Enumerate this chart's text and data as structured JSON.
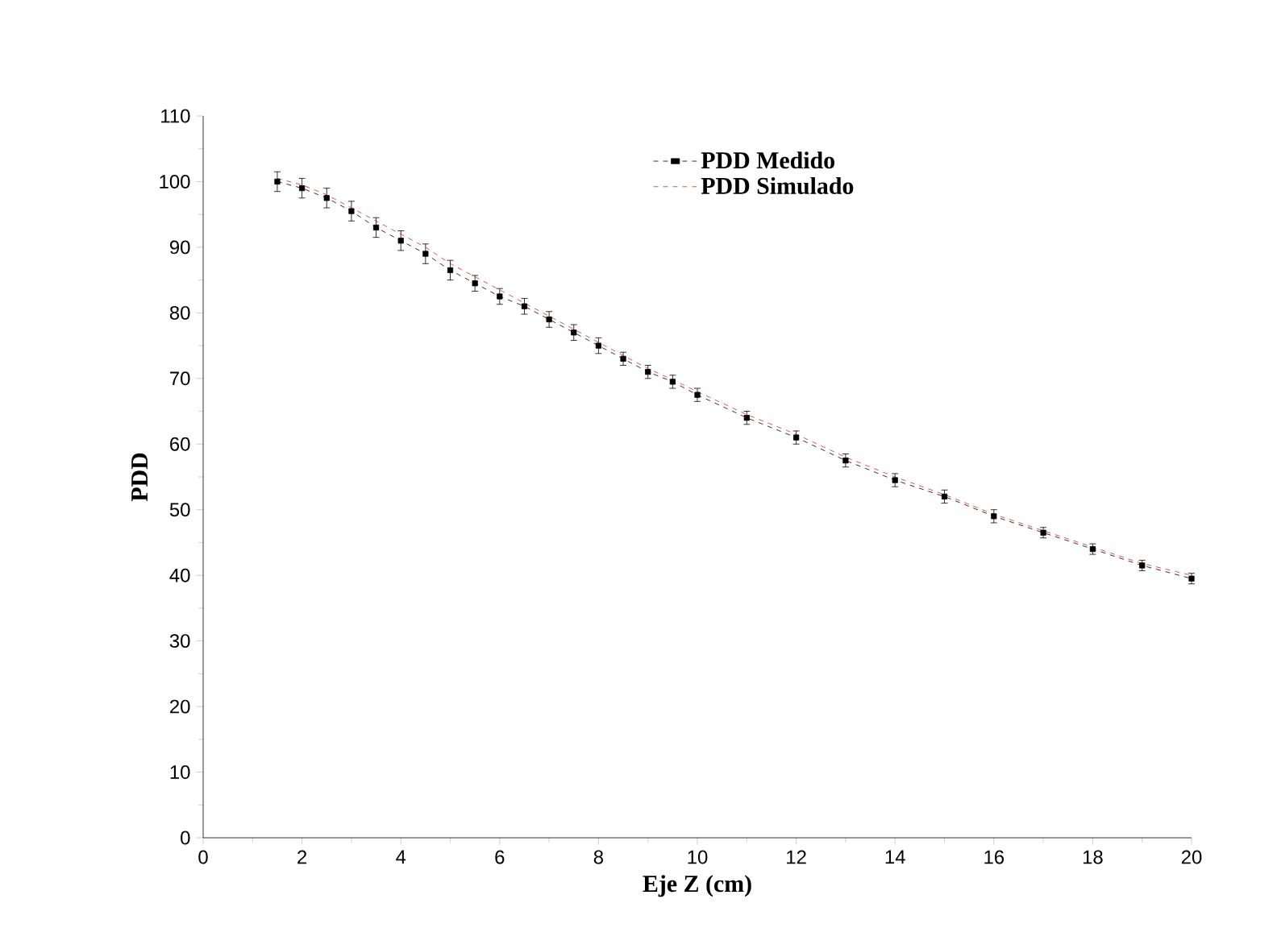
{
  "chart_data": {
    "type": "line",
    "xlabel": "Eje Z (cm)",
    "ylabel": "PDD",
    "xlim": [
      0,
      20
    ],
    "ylim": [
      0,
      110
    ],
    "xticks": [
      0,
      2,
      4,
      6,
      8,
      10,
      12,
      14,
      16,
      18,
      20
    ],
    "yticks": [
      0,
      10,
      20,
      30,
      40,
      50,
      60,
      70,
      80,
      90,
      100,
      110
    ],
    "legend": "top right",
    "grid": false,
    "x": [
      1.5,
      2,
      2.5,
      3,
      3.5,
      4,
      4.5,
      5,
      5.5,
      6,
      6.5,
      7,
      7.5,
      8,
      8.5,
      9,
      9.5,
      10,
      11,
      12,
      13,
      14,
      15,
      16,
      17,
      18,
      19,
      20
    ],
    "series": [
      {
        "name": "PDD Medido",
        "color": "#000000",
        "marker": "square",
        "line_style": "dashed",
        "values": [
          100,
          99,
          97.5,
          95.5,
          93,
          91,
          89,
          86.5,
          84.5,
          82.5,
          81,
          79,
          77,
          75,
          73,
          71,
          69.5,
          67.5,
          64,
          61,
          57.5,
          54.5,
          52,
          49,
          46.5,
          44,
          41.5,
          39.5
        ],
        "errors": [
          1.5,
          1.5,
          1.5,
          1.5,
          1.5,
          1.5,
          1.5,
          1.5,
          1.2,
          1.2,
          1.2,
          1.2,
          1.2,
          1.2,
          1,
          1,
          1,
          1,
          1,
          1,
          1,
          1,
          1,
          1,
          0.8,
          0.8,
          0.8,
          0.8
        ]
      },
      {
        "name": "PDD Simulado",
        "color": "#d62728",
        "marker": "none",
        "line_style": "dashed",
        "values": [
          100.5,
          99.5,
          98,
          96,
          94,
          92,
          90,
          87.5,
          85.5,
          83.5,
          81.5,
          79.5,
          77.5,
          75.5,
          73.5,
          71.5,
          69.8,
          68,
          64.5,
          61.5,
          58,
          55,
          52.3,
          49.3,
          46.8,
          44.3,
          41.8,
          40
        ]
      }
    ]
  }
}
